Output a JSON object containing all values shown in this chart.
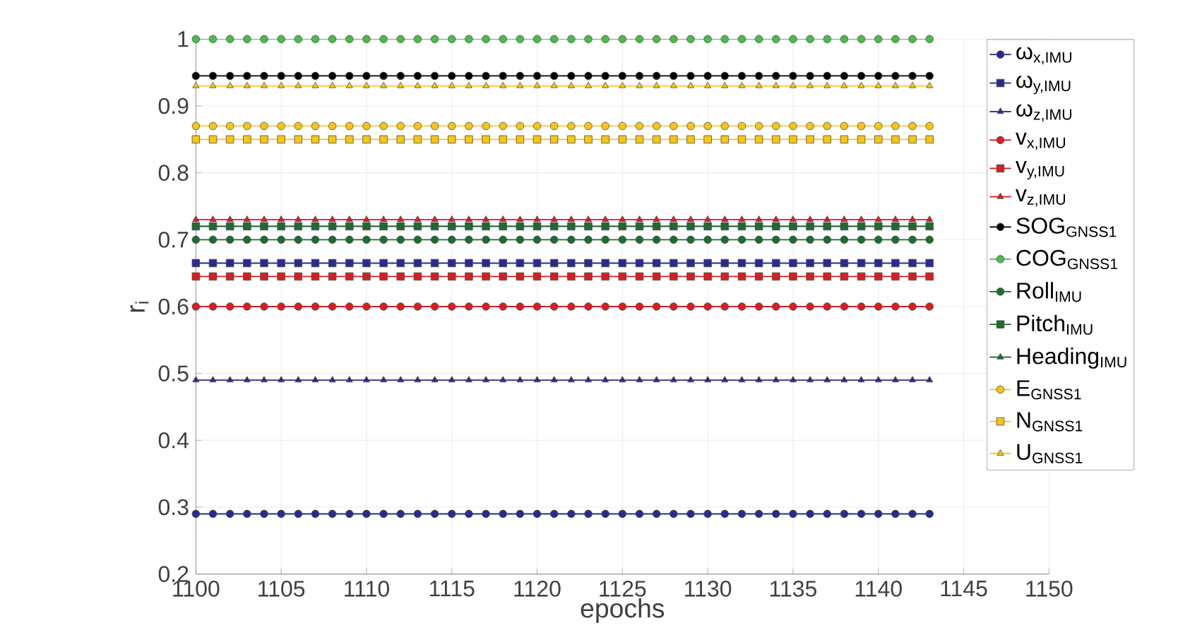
{
  "chart_data": {
    "type": "line",
    "xlabel": "epochs",
    "ylabel": "r$_{i}$",
    "xlim": [
      1100,
      1150
    ],
    "xticks": [
      1100,
      1105,
      1110,
      1115,
      1120,
      1125,
      1130,
      1135,
      1140,
      1145,
      1150
    ],
    "ylim": [
      0.2,
      1
    ],
    "yticks": [
      0.2,
      0.3,
      0.4,
      0.5,
      0.6,
      0.7,
      0.8,
      0.9,
      1
    ],
    "grid": true,
    "legend": "top right",
    "line_style": "solid",
    "x": [
      1100,
      1101,
      1102,
      1103,
      1104,
      1105,
      1106,
      1107,
      1108,
      1109,
      1110,
      1111,
      1112,
      1113,
      1114,
      1115,
      1116,
      1117,
      1118,
      1119,
      1120,
      1121,
      1122,
      1123,
      1124,
      1125,
      1126,
      1127,
      1128,
      1129,
      1130,
      1131,
      1132,
      1133,
      1134,
      1135,
      1136,
      1137,
      1138,
      1139,
      1140,
      1141,
      1142,
      1143
    ],
    "series": [
      {
        "name": "ω$_{x,IMU}$",
        "color": "#2b2b8c",
        "marker": "circle",
        "values": [
          0.29,
          0.29,
          0.29,
          0.29,
          0.29,
          0.29,
          0.29,
          0.29,
          0.29,
          0.29,
          0.29,
          0.29,
          0.29,
          0.29,
          0.29,
          0.29,
          0.29,
          0.29,
          0.29,
          0.29,
          0.29,
          0.29,
          0.29,
          0.29,
          0.29,
          0.29,
          0.29,
          0.29,
          0.29,
          0.29,
          0.29,
          0.29,
          0.29,
          0.29,
          0.29,
          0.29,
          0.29,
          0.29,
          0.29,
          0.29,
          0.29,
          0.29,
          0.29,
          0.29
        ]
      },
      {
        "name": "ω$_{y,IMU}$",
        "color": "#2b2b8c",
        "marker": "square",
        "values": [
          0.665,
          0.665,
          0.665,
          0.665,
          0.665,
          0.665,
          0.665,
          0.665,
          0.665,
          0.665,
          0.665,
          0.665,
          0.665,
          0.665,
          0.665,
          0.665,
          0.665,
          0.665,
          0.665,
          0.665,
          0.665,
          0.665,
          0.665,
          0.665,
          0.665,
          0.665,
          0.665,
          0.665,
          0.665,
          0.665,
          0.665,
          0.665,
          0.665,
          0.665,
          0.665,
          0.665,
          0.665,
          0.665,
          0.665,
          0.665,
          0.665,
          0.665,
          0.665,
          0.665
        ]
      },
      {
        "name": "ω$_{z,IMU}$",
        "color": "#2b2b8c",
        "marker": "triangle",
        "values": [
          0.49,
          0.49,
          0.49,
          0.49,
          0.49,
          0.49,
          0.49,
          0.49,
          0.49,
          0.49,
          0.49,
          0.49,
          0.49,
          0.49,
          0.49,
          0.49,
          0.49,
          0.49,
          0.49,
          0.49,
          0.49,
          0.49,
          0.49,
          0.49,
          0.49,
          0.49,
          0.49,
          0.49,
          0.49,
          0.49,
          0.49,
          0.49,
          0.49,
          0.49,
          0.49,
          0.49,
          0.49,
          0.49,
          0.49,
          0.49,
          0.49,
          0.49,
          0.49,
          0.49
        ]
      },
      {
        "name": "v$_{x,IMU}$",
        "color": "#d42020",
        "marker": "circle",
        "values": [
          0.6,
          0.6,
          0.6,
          0.6,
          0.6,
          0.6,
          0.6,
          0.6,
          0.6,
          0.6,
          0.6,
          0.6,
          0.6,
          0.6,
          0.6,
          0.6,
          0.6,
          0.6,
          0.6,
          0.6,
          0.6,
          0.6,
          0.6,
          0.6,
          0.6,
          0.6,
          0.6,
          0.6,
          0.6,
          0.6,
          0.6,
          0.6,
          0.6,
          0.6,
          0.6,
          0.6,
          0.6,
          0.6,
          0.6,
          0.6,
          0.6,
          0.6,
          0.6,
          0.6
        ]
      },
      {
        "name": "v$_{y,IMU}$",
        "color": "#d42020",
        "marker": "square",
        "values": [
          0.645,
          0.645,
          0.645,
          0.645,
          0.645,
          0.645,
          0.645,
          0.645,
          0.645,
          0.645,
          0.645,
          0.645,
          0.645,
          0.645,
          0.645,
          0.645,
          0.645,
          0.645,
          0.645,
          0.645,
          0.645,
          0.645,
          0.645,
          0.645,
          0.645,
          0.645,
          0.645,
          0.645,
          0.645,
          0.645,
          0.645,
          0.645,
          0.645,
          0.645,
          0.645,
          0.645,
          0.645,
          0.645,
          0.645,
          0.645,
          0.645,
          0.645,
          0.645,
          0.645
        ]
      },
      {
        "name": "v$_{z,IMU}$",
        "color": "#d42020",
        "marker": "triangle",
        "values": [
          0.73,
          0.73,
          0.73,
          0.73,
          0.73,
          0.73,
          0.73,
          0.73,
          0.73,
          0.73,
          0.73,
          0.73,
          0.73,
          0.73,
          0.73,
          0.73,
          0.73,
          0.73,
          0.73,
          0.73,
          0.73,
          0.73,
          0.73,
          0.73,
          0.73,
          0.73,
          0.73,
          0.73,
          0.73,
          0.73,
          0.73,
          0.73,
          0.73,
          0.73,
          0.73,
          0.73,
          0.73,
          0.73,
          0.73,
          0.73,
          0.73,
          0.73,
          0.73,
          0.73
        ]
      },
      {
        "name": "SOG$_{GNSS1}$",
        "color": "#000000",
        "marker": "circle",
        "values": [
          0.945,
          0.945,
          0.945,
          0.945,
          0.945,
          0.945,
          0.945,
          0.945,
          0.945,
          0.945,
          0.945,
          0.945,
          0.945,
          0.945,
          0.945,
          0.945,
          0.945,
          0.945,
          0.945,
          0.945,
          0.945,
          0.945,
          0.945,
          0.945,
          0.945,
          0.945,
          0.945,
          0.945,
          0.945,
          0.945,
          0.945,
          0.945,
          0.945,
          0.945,
          0.945,
          0.945,
          0.945,
          0.945,
          0.945,
          0.945,
          0.945,
          0.945,
          0.945,
          0.945
        ]
      },
      {
        "name": "COG$_{GNSS1}$",
        "color": "#4cbb4c",
        "marker": "circle",
        "values": [
          1,
          1,
          1,
          1,
          1,
          1,
          1,
          1,
          1,
          1,
          1,
          1,
          1,
          1,
          1,
          1,
          1,
          1,
          1,
          1,
          1,
          1,
          1,
          1,
          1,
          1,
          1,
          1,
          1,
          1,
          1,
          1,
          1,
          1,
          1,
          1,
          1,
          1,
          1,
          1,
          1,
          1,
          1,
          1
        ]
      },
      {
        "name": "Roll$_{IMU}$",
        "color": "#1b6e2e",
        "marker": "circle",
        "values": [
          0.7,
          0.7,
          0.7,
          0.7,
          0.7,
          0.7,
          0.7,
          0.7,
          0.7,
          0.7,
          0.7,
          0.7,
          0.7,
          0.7,
          0.7,
          0.7,
          0.7,
          0.7,
          0.7,
          0.7,
          0.7,
          0.7,
          0.7,
          0.7,
          0.7,
          0.7,
          0.7,
          0.7,
          0.7,
          0.7,
          0.7,
          0.7,
          0.7,
          0.7,
          0.7,
          0.7,
          0.7,
          0.7,
          0.7,
          0.7,
          0.7,
          0.7,
          0.7,
          0.7
        ]
      },
      {
        "name": "Pitch$_{IMU}$",
        "color": "#1b6e2e",
        "marker": "square",
        "values": [
          0.72,
          0.72,
          0.72,
          0.72,
          0.72,
          0.72,
          0.72,
          0.72,
          0.72,
          0.72,
          0.72,
          0.72,
          0.72,
          0.72,
          0.72,
          0.72,
          0.72,
          0.72,
          0.72,
          0.72,
          0.72,
          0.72,
          0.72,
          0.72,
          0.72,
          0.72,
          0.72,
          0.72,
          0.72,
          0.72,
          0.72,
          0.72,
          0.72,
          0.72,
          0.72,
          0.72,
          0.72,
          0.72,
          0.72,
          0.72,
          0.72,
          0.72,
          0.72,
          0.72
        ]
      },
      {
        "name": "Heading$_{IMU}$",
        "color": "#1b6e2e",
        "marker": "triangle",
        "values": [
          0.72,
          0.72,
          0.72,
          0.72,
          0.72,
          0.72,
          0.72,
          0.72,
          0.72,
          0.72,
          0.72,
          0.72,
          0.72,
          0.72,
          0.72,
          0.72,
          0.72,
          0.72,
          0.72,
          0.72,
          0.72,
          0.72,
          0.72,
          0.72,
          0.72,
          0.72,
          0.72,
          0.72,
          0.72,
          0.72,
          0.72,
          0.72,
          0.72,
          0.72,
          0.72,
          0.72,
          0.72,
          0.72,
          0.72,
          0.72,
          0.72,
          0.72,
          0.72,
          0.72
        ]
      },
      {
        "name": "E$_{GNSS1}$",
        "color": "#f5c518",
        "marker": "circle",
        "values": [
          0.87,
          0.87,
          0.87,
          0.87,
          0.87,
          0.87,
          0.87,
          0.87,
          0.87,
          0.87,
          0.87,
          0.87,
          0.87,
          0.87,
          0.87,
          0.87,
          0.87,
          0.87,
          0.87,
          0.87,
          0.87,
          0.87,
          0.87,
          0.87,
          0.87,
          0.87,
          0.87,
          0.87,
          0.87,
          0.87,
          0.87,
          0.87,
          0.87,
          0.87,
          0.87,
          0.87,
          0.87,
          0.87,
          0.87,
          0.87,
          0.87,
          0.87,
          0.87,
          0.87
        ]
      },
      {
        "name": "N$_{GNSS1}$",
        "color": "#f5c518",
        "marker": "square",
        "values": [
          0.85,
          0.85,
          0.85,
          0.85,
          0.85,
          0.85,
          0.85,
          0.85,
          0.85,
          0.85,
          0.85,
          0.85,
          0.85,
          0.85,
          0.85,
          0.85,
          0.85,
          0.85,
          0.85,
          0.85,
          0.85,
          0.85,
          0.85,
          0.85,
          0.85,
          0.85,
          0.85,
          0.85,
          0.85,
          0.85,
          0.85,
          0.85,
          0.85,
          0.85,
          0.85,
          0.85,
          0.85,
          0.85,
          0.85,
          0.85,
          0.85,
          0.85,
          0.85,
          0.85
        ]
      },
      {
        "name": "U$_{GNSS1}$",
        "color": "#f5c518",
        "marker": "triangle",
        "values": [
          0.93,
          0.93,
          0.93,
          0.93,
          0.93,
          0.93,
          0.93,
          0.93,
          0.93,
          0.93,
          0.93,
          0.93,
          0.93,
          0.93,
          0.93,
          0.93,
          0.93,
          0.93,
          0.93,
          0.93,
          0.93,
          0.93,
          0.93,
          0.93,
          0.93,
          0.93,
          0.93,
          0.93,
          0.93,
          0.93,
          0.93,
          0.93,
          0.93,
          0.93,
          0.93,
          0.93,
          0.93,
          0.93,
          0.93,
          0.93,
          0.93,
          0.93,
          0.93,
          0.93
        ]
      }
    ]
  }
}
